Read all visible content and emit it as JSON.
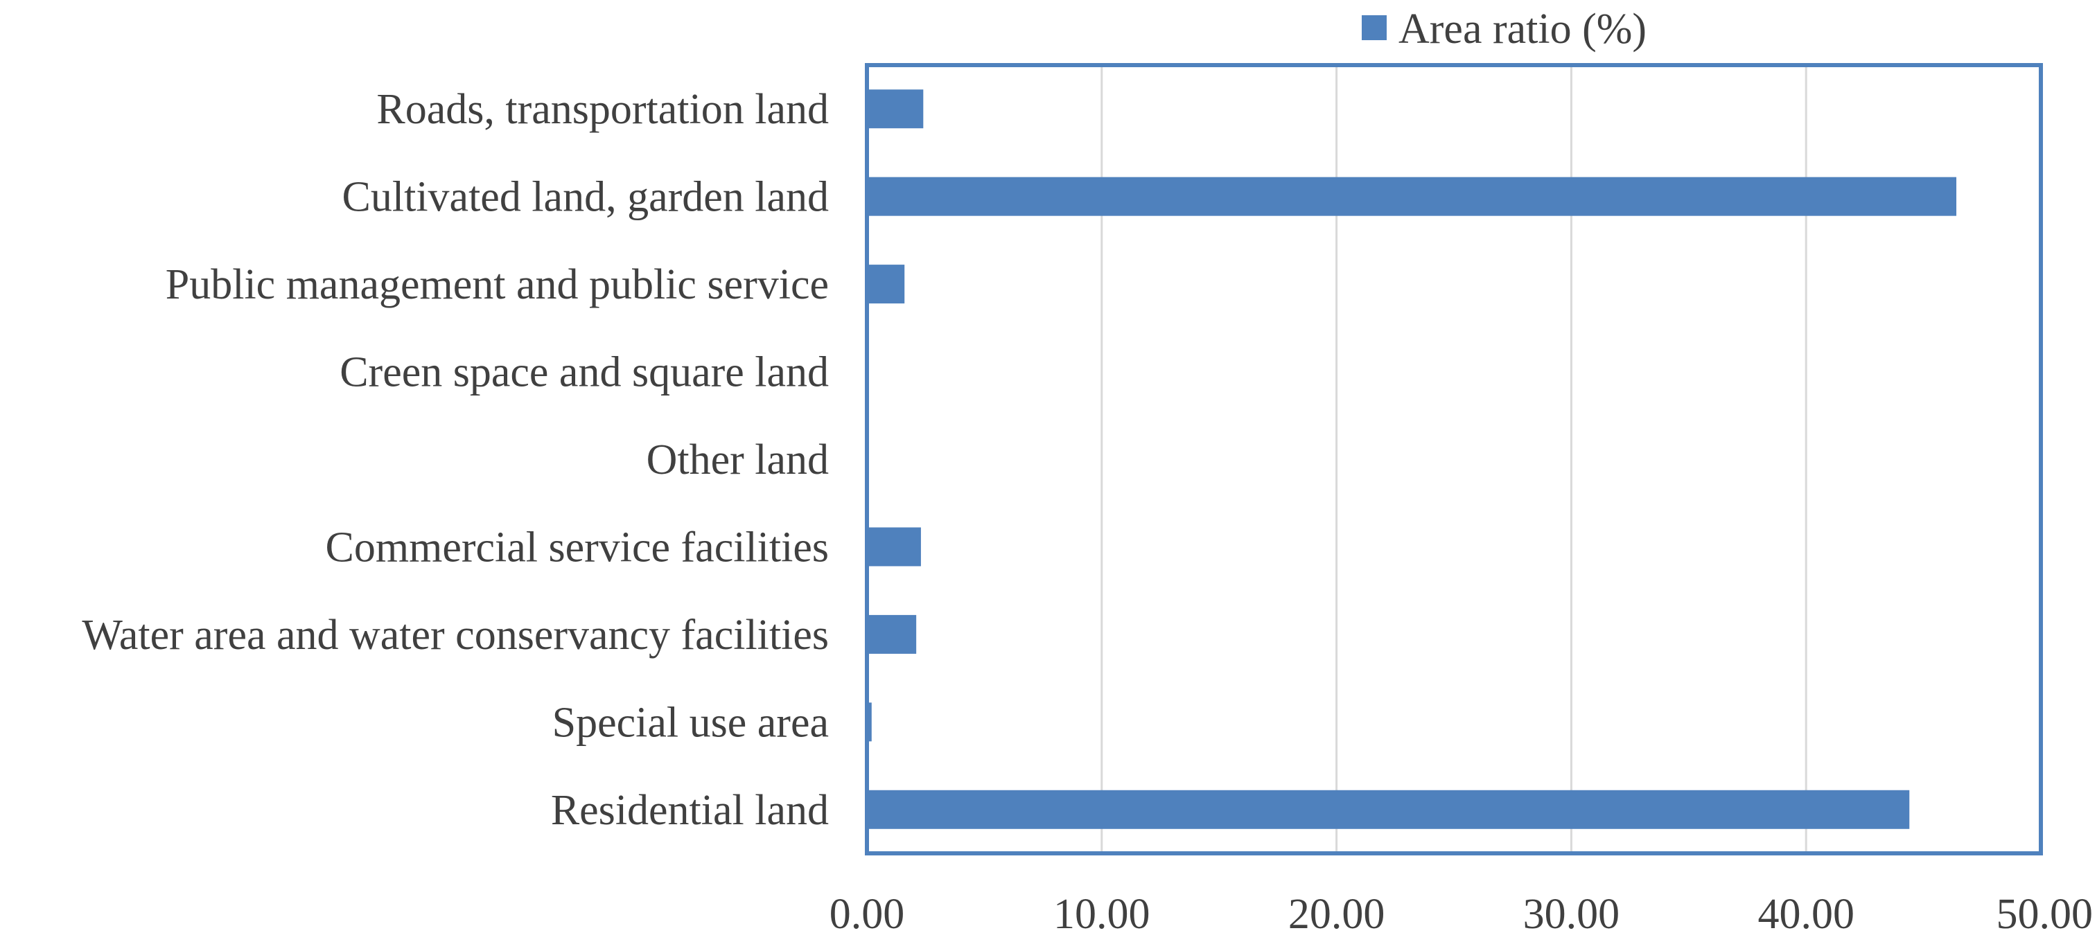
{
  "chart_data": {
    "type": "bar",
    "orientation": "horizontal",
    "categories": [
      "Roads, transportation land",
      "Cultivated land, garden land",
      "Public management and public service",
      "Creen space and square land",
      "Other land",
      "Commercial service facilities",
      "Water area and water conservancy facilities",
      "Special use area",
      "Residential land"
    ],
    "series": [
      {
        "name": "Area ratio (%)",
        "values": [
          2.4,
          46.4,
          1.6,
          0.0,
          0.0,
          2.3,
          2.1,
          0.2,
          44.4
        ],
        "color": "#4f81bd"
      }
    ],
    "xlim": [
      0,
      50
    ],
    "xticks": [
      0,
      10,
      20,
      30,
      40,
      50
    ],
    "xtick_labels": [
      "0.00",
      "10.00",
      "20.00",
      "30.00",
      "40.00",
      "50.00"
    ],
    "grid": true,
    "legend_position": "top-center",
    "frame_color": "#4f81bd",
    "title": "",
    "xlabel": "",
    "ylabel": ""
  }
}
